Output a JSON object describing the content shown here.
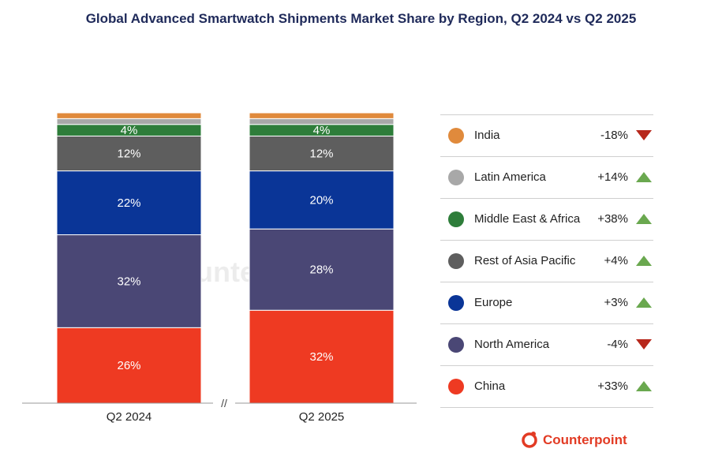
{
  "title": "Global Advanced Smartwatch Shipments Market Share by Region, Q2 2024 vs Q2 2025",
  "chart_data": {
    "type": "bar",
    "stacked": true,
    "categories": [
      "Q2 2024",
      "Q2 2025"
    ],
    "series": [
      {
        "name": "China",
        "values": [
          26,
          32
        ],
        "labels": [
          "26%",
          "32%"
        ],
        "color": "#ee3a22",
        "change": "+33%",
        "direction": "up"
      },
      {
        "name": "North America",
        "values": [
          32,
          28
        ],
        "labels": [
          "32%",
          "28%"
        ],
        "color": "#4a4775",
        "change": "-4%",
        "direction": "down"
      },
      {
        "name": "Europe",
        "values": [
          22,
          20
        ],
        "labels": [
          "22%",
          "20%"
        ],
        "color": "#0a3597",
        "change": "+3%",
        "direction": "up"
      },
      {
        "name": "Rest of Asia Pacific",
        "values": [
          12,
          12
        ],
        "labels": [
          "12%",
          "12%"
        ],
        "color": "#5e5e5e",
        "change": "+4%",
        "direction": "up"
      },
      {
        "name": "Middle East & Africa",
        "values": [
          4,
          4
        ],
        "labels": [
          "4%",
          "4%"
        ],
        "color": "#2e7d3a",
        "change": "+38%",
        "direction": "up"
      },
      {
        "name": "Latin America",
        "values": [
          2,
          2
        ],
        "labels": [
          "",
          ""
        ],
        "color": "#a8a8a8",
        "change": "+14%",
        "direction": "up"
      },
      {
        "name": "India",
        "values": [
          2,
          2
        ],
        "labels": [
          "",
          ""
        ],
        "color": "#e08a3c",
        "change": "-18%",
        "direction": "down"
      }
    ],
    "axis_break": "//",
    "ylim": [
      0,
      100
    ],
    "grid": false,
    "legend_position": "right"
  },
  "brand": {
    "name": "Counterpoint",
    "color": "#e23b24"
  },
  "colors": {
    "up": "#6aa84f",
    "down": "#b7281c"
  }
}
